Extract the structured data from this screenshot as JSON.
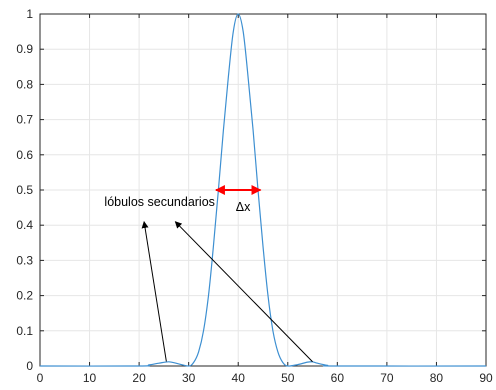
{
  "chart_data": {
    "type": "line",
    "title": "",
    "xlabel": "",
    "ylabel": "",
    "xlim": [
      0,
      90
    ],
    "ylim": [
      0,
      1
    ],
    "x_ticks": [
      0,
      10,
      20,
      30,
      40,
      50,
      60,
      70,
      80,
      90
    ],
    "y_ticks": [
      0,
      0.1,
      0.2,
      0.3,
      0.4,
      0.5,
      0.6,
      0.7,
      0.8,
      0.9,
      1
    ],
    "grid": true,
    "series": [
      {
        "color": "#3d8fd1",
        "x": [
          0,
          20,
          22,
          24,
          26,
          28,
          30,
          31,
          32,
          33,
          34,
          35,
          36,
          37,
          38,
          39,
          40,
          41,
          42,
          43,
          44,
          45,
          46,
          47,
          48,
          49,
          50,
          52,
          54,
          55,
          56,
          58,
          60,
          90
        ],
        "y": [
          0,
          0,
          0.003,
          0.008,
          0.012,
          0.006,
          0,
          0.01,
          0.04,
          0.1,
          0.2,
          0.34,
          0.5,
          0.67,
          0.82,
          0.95,
          1.0,
          0.95,
          0.82,
          0.67,
          0.5,
          0.34,
          0.2,
          0.1,
          0.04,
          0.01,
          0,
          0.004,
          0.011,
          0.012,
          0.008,
          0.002,
          0,
          0
        ]
      }
    ],
    "annotations": [
      {
        "id": "delta-x",
        "text": "Δx",
        "text_pos": [
          39.5,
          0.44
        ],
        "arrow": {
          "from": [
            35.5,
            0.5
          ],
          "to": [
            44.5,
            0.5
          ],
          "double": true,
          "color": "#ff0000"
        }
      },
      {
        "id": "lobes",
        "text": "lóbulos secundarios",
        "text_pos": [
          13,
          0.455
        ],
        "arrows": [
          {
            "from": [
              25.5,
              0.013
            ],
            "to": [
              21,
              0.41
            ],
            "color": "#000000"
          },
          {
            "from": [
              55,
              0.012
            ],
            "to": [
              27.3,
              0.41
            ],
            "color": "#000000"
          }
        ]
      }
    ]
  }
}
